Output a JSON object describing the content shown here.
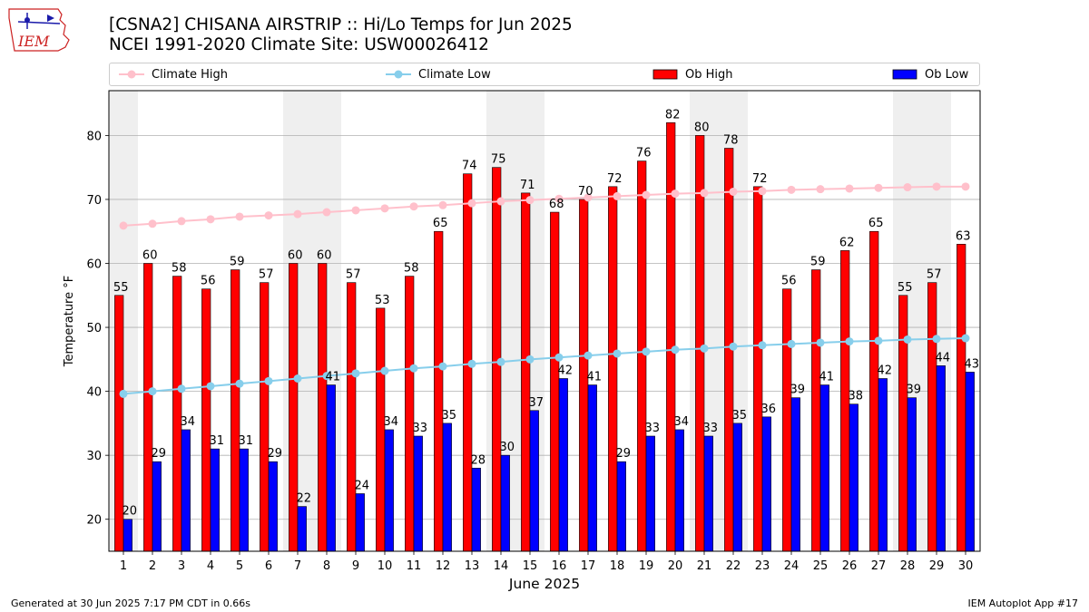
{
  "logo": {
    "text": "IEM"
  },
  "header": {
    "title": "[CSNA2] CHISANA AIRSTRIP :: Hi/Lo Temps for Jun 2025",
    "subtitle": "NCEI 1991-2020 Climate Site: USW00026412"
  },
  "legend": {
    "items": [
      {
        "label": "Climate High",
        "kind": "line",
        "color": "#ffc0cb"
      },
      {
        "label": "Climate Low",
        "kind": "line",
        "color": "#87ceeb"
      },
      {
        "label": "Ob High",
        "kind": "bar",
        "color": "#ff0000"
      },
      {
        "label": "Ob Low",
        "kind": "bar",
        "color": "#0000ff"
      }
    ]
  },
  "footer": {
    "left": "Generated at 30 Jun 2025 7:17 PM CDT in 0.66s",
    "right": "IEM Autoplot App #17"
  },
  "chart_data": {
    "type": "bar",
    "xlabel": "June 2025",
    "ylabel": "Temperature °F",
    "ylim": [
      15,
      87
    ],
    "yticks": [
      20,
      30,
      40,
      50,
      60,
      70,
      80
    ],
    "grid": true,
    "legend_position": "top",
    "categories": [
      "1",
      "2",
      "3",
      "4",
      "5",
      "6",
      "7",
      "8",
      "9",
      "10",
      "11",
      "12",
      "13",
      "14",
      "15",
      "16",
      "17",
      "18",
      "19",
      "20",
      "21",
      "22",
      "23",
      "24",
      "25",
      "26",
      "27",
      "28",
      "29",
      "30"
    ],
    "weekend_shading_days": [
      [
        1,
        1
      ],
      [
        7,
        8
      ],
      [
        14,
        15
      ],
      [
        21,
        22
      ],
      [
        28,
        29
      ]
    ],
    "series": [
      {
        "name": "Ob High",
        "kind": "bar",
        "color": "#ff0000",
        "values": [
          55,
          60,
          58,
          56,
          59,
          57,
          60,
          60,
          57,
          53,
          58,
          65,
          74,
          75,
          71,
          68,
          70,
          72,
          76,
          82,
          80,
          78,
          72,
          56,
          59,
          62,
          65,
          55,
          57,
          63
        ]
      },
      {
        "name": "Ob Low",
        "kind": "bar",
        "color": "#0000ff",
        "values": [
          20,
          29,
          34,
          31,
          31,
          29,
          22,
          41,
          24,
          34,
          33,
          35,
          28,
          30,
          37,
          42,
          41,
          29,
          33,
          34,
          33,
          35,
          36,
          39,
          41,
          38,
          42,
          39,
          44,
          43
        ]
      },
      {
        "name": "Climate High",
        "kind": "line",
        "color": "#ffc0cb",
        "values": [
          65.9,
          66.2,
          66.6,
          66.9,
          67.3,
          67.5,
          67.7,
          68.0,
          68.3,
          68.6,
          68.9,
          69.1,
          69.4,
          69.7,
          69.9,
          70.1,
          70.3,
          70.5,
          70.7,
          70.9,
          71.0,
          71.2,
          71.3,
          71.5,
          71.6,
          71.7,
          71.8,
          71.9,
          72.0,
          72.0
        ]
      },
      {
        "name": "Climate Low",
        "kind": "line",
        "color": "#87ceeb",
        "values": [
          39.6,
          40.0,
          40.4,
          40.8,
          41.2,
          41.6,
          42.0,
          42.4,
          42.8,
          43.2,
          43.6,
          43.9,
          44.3,
          44.6,
          45.0,
          45.3,
          45.6,
          45.9,
          46.2,
          46.5,
          46.7,
          47.0,
          47.2,
          47.4,
          47.6,
          47.8,
          47.9,
          48.1,
          48.2,
          48.3
        ]
      }
    ]
  }
}
